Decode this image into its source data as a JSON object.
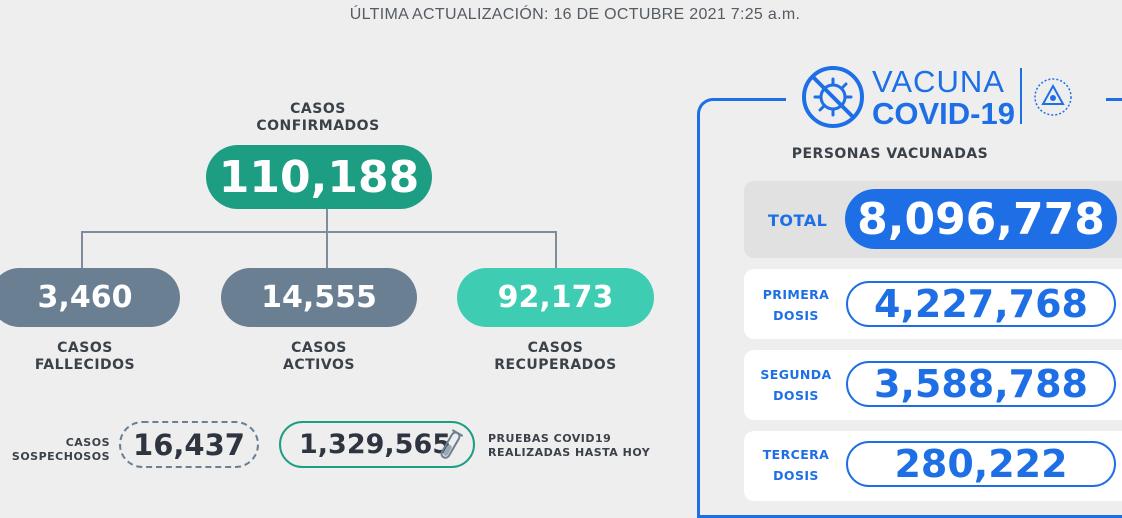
{
  "header": {
    "last_update": "ÚLTIMA ACTUALIZACIÓN: 16 DE OCTUBRE 2021 7:25 a.m."
  },
  "cases": {
    "confirmed": {
      "label_line1": "CASOS",
      "label_line2": "CONFIRMADOS",
      "value": "110,188"
    },
    "deceased": {
      "label_line1": "CASOS",
      "label_line2": "FALLECIDOS",
      "value": "3,460"
    },
    "active": {
      "label_line1": "CASOS",
      "label_line2": "ACTIVOS",
      "value": "14,555"
    },
    "recovered": {
      "label_line1": "CASOS",
      "label_line2": "RECUPERADOS",
      "value": "92,173"
    },
    "suspected": {
      "label_line1": "CASOS",
      "label_line2": "SOSPECHOSOS",
      "value": "16,437"
    },
    "tests": {
      "label_line1": "PRUEBAS COVID19",
      "label_line2": "REALIZADAS HASTA HOY",
      "value": "1,329,565",
      "icon": "test-tube-icon"
    }
  },
  "vaccination": {
    "logo_line1": "VACUNA",
    "logo_line2": "COVID-19",
    "logo_icon": "no-virus-icon",
    "seal_icon": "el-salvador-seal-icon",
    "subtitle": "PERSONAS VACUNADAS",
    "total": {
      "label": "TOTAL",
      "value": "8,096,778"
    },
    "doses": [
      {
        "label_line1": "PRIMERA",
        "label_line2": "DOSIS",
        "value": "4,227,768"
      },
      {
        "label_line1": "SEGUNDA",
        "label_line2": "DOSIS",
        "value": "3,588,788"
      },
      {
        "label_line1": "TERCERA",
        "label_line2": "DOSIS",
        "value": "280,222"
      }
    ]
  },
  "colors": {
    "confirmed": "#1d9e83",
    "gray_pill": "#6b7f93",
    "recovered": "#3ecdb3",
    "vaccine_blue": "#1e6fe6",
    "background": "#eeeeee"
  }
}
